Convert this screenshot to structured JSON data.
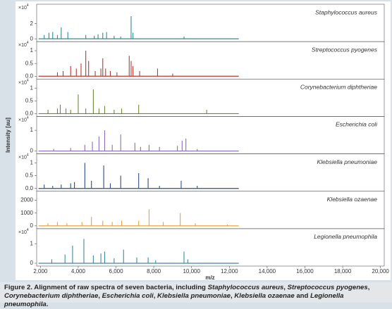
{
  "chart_data": {
    "type": "spectrum",
    "xlabel": "m/z",
    "ylabel": "Intensity [au]",
    "xlim": [
      1800,
      20200
    ],
    "xticks": [
      {
        "value": 2000,
        "label": "2,000"
      },
      {
        "value": 4000,
        "label": "4,000"
      },
      {
        "value": 6000,
        "label": "6,000"
      },
      {
        "value": 8000,
        "label": "8,000"
      },
      {
        "value": 10000,
        "label": "10,000"
      },
      {
        "value": 12000,
        "label": "12,000"
      },
      {
        "value": 14000,
        "label": "14,000"
      },
      {
        "value": 16000,
        "label": "16,000"
      },
      {
        "value": 18000,
        "label": "18,000"
      },
      {
        "value": 20000,
        "label": "20,000"
      }
    ],
    "series": [
      {
        "name": "Staphylococcus aureus",
        "color": "#2b8c9c",
        "y_scale": {
          "base": "×10",
          "exponent": 4
        },
        "ylim": [
          0,
          4.4
        ],
        "yticks": [
          0,
          2
        ],
        "x": [
          2200,
          2450,
          2650,
          2900,
          3100,
          3450,
          4400,
          4850,
          5050,
          5300,
          5500,
          5900,
          6250,
          6800,
          6900,
          9600
        ],
        "values": [
          0.5,
          0.8,
          0.9,
          0.5,
          1.5,
          0.9,
          0.5,
          0.4,
          0.6,
          0.8,
          0.9,
          0.4,
          0.3,
          3.0,
          0.8,
          0.3
        ]
      },
      {
        "name": "Streptococcus pyogenes",
        "color": "#b83a2e",
        "y_scale": {
          "base": "×10",
          "exponent": 4
        },
        "ylim": [
          0,
          1.3
        ],
        "yticks": [
          {
            "value": 0,
            "label": "0.0"
          },
          0.5,
          1
        ],
        "x": [
          2900,
          3200,
          3600,
          3900,
          4150,
          4400,
          4550,
          4900,
          5200,
          5300,
          5450,
          5700,
          6050,
          6700,
          6800,
          6900,
          7250,
          8200,
          9000
        ],
        "values": [
          0.15,
          0.2,
          0.4,
          0.3,
          0.5,
          1.0,
          0.6,
          0.2,
          0.3,
          0.7,
          0.3,
          0.2,
          0.15,
          0.8,
          0.6,
          0.4,
          0.2,
          0.3,
          0.1
        ]
      },
      {
        "name": "Corynebacterium diphtheriae",
        "color": "#6b8c34",
        "y_scale": {
          "base": "×10",
          "exponent": 4
        },
        "ylim": [
          0,
          1.3
        ],
        "yticks": [
          {
            "value": 0,
            "label": "0.0"
          },
          0.5,
          1
        ],
        "x": [
          2400,
          2900,
          3050,
          3350,
          3600,
          4000,
          4400,
          4800,
          5100,
          5400,
          5900,
          6300,
          7200,
          10800
        ],
        "values": [
          0.15,
          0.2,
          0.35,
          0.2,
          0.15,
          0.75,
          0.2,
          0.95,
          0.2,
          0.3,
          0.15,
          0.2,
          0.35,
          0.15
        ]
      },
      {
        "name": "Escherichia coli",
        "color": "#8c6cbc",
        "y_scale": {
          "base": "×10",
          "exponent": 4
        },
        "ylim": [
          0,
          1.6
        ],
        "yticks": [
          0,
          1
        ],
        "x": [
          2700,
          3600,
          4350,
          4750,
          5100,
          5400,
          5800,
          6250,
          7000,
          7300,
          7750,
          8300,
          9250,
          9500,
          9700,
          10300
        ],
        "values": [
          0.1,
          0.15,
          0.3,
          0.45,
          0.7,
          1.0,
          0.3,
          0.8,
          0.4,
          0.2,
          0.3,
          0.2,
          0.25,
          0.5,
          0.6,
          0.1
        ]
      },
      {
        "name": "Klebsiella pneumoniae",
        "color": "#2c4c8c",
        "y_scale": {
          "base": "×10",
          "exponent": 4
        },
        "ylim": [
          0,
          1.3
        ],
        "yticks": [
          {
            "value": 0,
            "label": "0.0"
          },
          0.5,
          1
        ],
        "x": [
          2200,
          2650,
          3100,
          3600,
          3800,
          4350,
          4700,
          5350,
          5700,
          6250,
          7200,
          7700,
          8300,
          9450,
          10300
        ],
        "values": [
          0.15,
          0.1,
          0.15,
          0.2,
          0.25,
          1.0,
          0.3,
          0.9,
          0.2,
          0.5,
          0.6,
          0.4,
          0.1,
          0.3,
          0.1
        ]
      },
      {
        "name": "Klebsiella ozaenae",
        "color": "#e0a53a",
        "ylim": [
          0,
          2600
        ],
        "yticks": [
          0,
          1000,
          2000
        ],
        "x": [
          2400,
          2900,
          3400,
          4200,
          4700,
          5300,
          5800,
          6300,
          7200,
          7750,
          8500,
          9400,
          10200,
          11900
        ],
        "values": [
          200,
          300,
          200,
          300,
          700,
          400,
          300,
          400,
          400,
          1300,
          300,
          1000,
          200,
          100
        ]
      },
      {
        "name": "Legionella pneumophila",
        "color": "#3a8ca4",
        "y_scale": {
          "base": "×10",
          "exponent": 4
        },
        "ylim": [
          0,
          1.7
        ],
        "yticks": [
          0,
          1
        ],
        "x": [
          2600,
          3300,
          3700,
          4300,
          4800,
          5200,
          5400,
          5900,
          6400,
          7100,
          7700,
          8100,
          9600,
          9800
        ],
        "values": [
          0.2,
          0.45,
          0.9,
          1.25,
          0.4,
          0.5,
          0.6,
          0.25,
          0.7,
          0.3,
          0.3,
          0.15,
          0.6,
          0.2
        ]
      }
    ]
  },
  "caption": [
    "Figure 2. Alignment of raw spectra of seven bacteria, including ",
    "Staphylococcus aureus",
    ", ",
    "Streptococcus pyogenes",
    ", ",
    "Corynebacterium diphtheriae",
    ", ",
    "Escherichia coli",
    ", ",
    "Klebsiella pneumoniae",
    ", ",
    "Klebsiella ozaenae",
    " and ",
    "Legionella pneumophila",
    "."
  ]
}
